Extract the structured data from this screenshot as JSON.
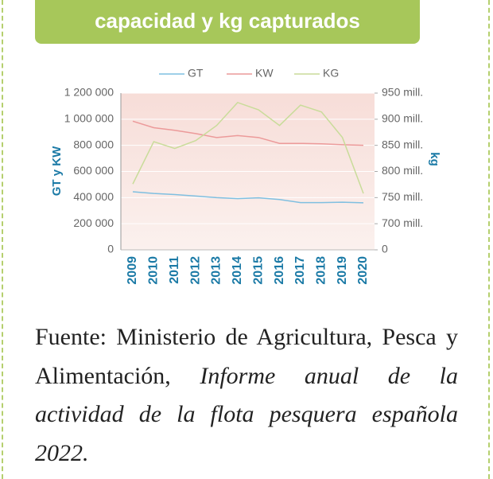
{
  "header": {
    "title": "capacidad y kg capturados"
  },
  "chart_data": {
    "type": "line",
    "categories": [
      "2009",
      "2010",
      "2011",
      "2012",
      "2013",
      "2014",
      "2015",
      "2016",
      "2017",
      "2018",
      "2019",
      "2020"
    ],
    "series": [
      {
        "name": "GT",
        "color": "#7fbfe0",
        "values": [
          445000,
          432000,
          423000,
          412000,
          400000,
          392000,
          398000,
          385000,
          362000,
          362000,
          365000,
          360000
        ]
      },
      {
        "name": "KW",
        "color": "#ec9a9a",
        "values": [
          985000,
          935000,
          915000,
          890000,
          860000,
          875000,
          860000,
          815000,
          815000,
          812000,
          805000,
          800000
        ]
      },
      {
        "name": "KG",
        "color": "#c9dc9a",
        "axis": "y2",
        "values": [
          776000000,
          857000000,
          844000000,
          859000000,
          888000000,
          932000000,
          918000000,
          888000000,
          927000000,
          914000000,
          865000000,
          758000000
        ]
      }
    ],
    "ylabel": "GT y KW",
    "y2label": "kg",
    "ylim": [
      0,
      1200000
    ],
    "yticks": [
      0,
      {
        "value": 200000,
        "label": "200 000"
      },
      {
        "value": 400000,
        "label": "400 000"
      },
      {
        "value": 600000,
        "label": "600 000"
      },
      {
        "value": 800000,
        "label": "800 000"
      },
      {
        "value": 1000000,
        "label": "1 000 000"
      },
      {
        "value": 1200000,
        "label": "1 200 000"
      }
    ],
    "y2lim": [
      0,
      950000000
    ],
    "y2_break": [
      0,
      650000000
    ],
    "y2ticks": [
      0,
      {
        "value": 700000000,
        "label": "700 mill."
      },
      {
        "value": 750000000,
        "label": "750 mill."
      },
      {
        "value": 800000000,
        "label": "800 mill."
      },
      {
        "value": 850000000,
        "label": "850 mill."
      },
      {
        "value": 900000000,
        "label": "900 mill."
      },
      {
        "value": 950000000,
        "label": "950 mill."
      }
    ],
    "grid": true,
    "legend": "top"
  },
  "source": {
    "text": "Fuente: Ministerio de Agricultura, Pesca y Alimentación, ",
    "italic_text": "Informe anual de la actividad de la flota pesquera española 2022."
  }
}
